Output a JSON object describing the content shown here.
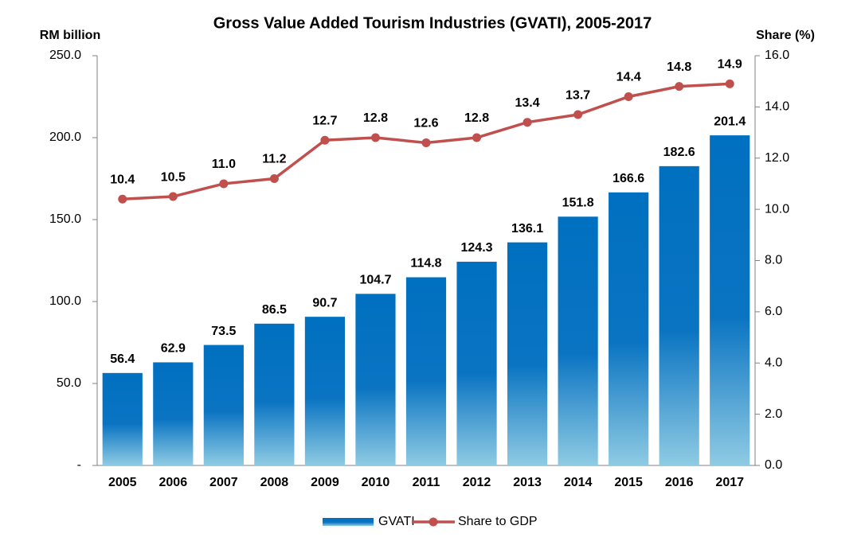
{
  "chart_data": {
    "type": "bar",
    "title": "Gross Value Added Tourism Industries (GVATI), 2005-2017",
    "y_axis_label": "RM billion",
    "y2_axis_label": "Share (%)",
    "categories": [
      "2005",
      "2006",
      "2007",
      "2008",
      "2009",
      "2010",
      "2011",
      "2012",
      "2013",
      "2014",
      "2015",
      "2016",
      "2017"
    ],
    "series": [
      {
        "name": "GVATI",
        "type": "bar",
        "color": "#0070c0",
        "values": [
          56.4,
          62.9,
          73.5,
          86.5,
          90.7,
          104.7,
          114.8,
          124.3,
          136.1,
          151.8,
          166.6,
          182.6,
          201.4
        ]
      },
      {
        "name": "Share to GDP",
        "type": "line",
        "axis": "y2",
        "color": "#c0504d",
        "values": [
          10.4,
          10.5,
          11.0,
          11.2,
          12.7,
          12.8,
          12.6,
          12.8,
          13.4,
          13.7,
          14.4,
          14.8,
          14.9
        ],
        "value_labels": [
          "10.4",
          "10.5",
          "11.0",
          "11.2",
          "12.7",
          "12.8",
          "12.6",
          "12.8",
          "13.4",
          "13.7",
          "14.4",
          "14.8",
          "14.9"
        ]
      }
    ],
    "ylim": [
      0,
      250
    ],
    "yticks": [
      {
        "value": 0,
        "label": "-"
      },
      {
        "value": 50,
        "label": "50.0"
      },
      {
        "value": 100,
        "label": "100.0"
      },
      {
        "value": 150,
        "label": "150.0"
      },
      {
        "value": 200,
        "label": "200.0"
      },
      {
        "value": 250,
        "label": "250.0"
      }
    ],
    "y2lim": [
      0,
      16
    ],
    "y2ticks": [
      {
        "value": 0,
        "label": "0.0"
      },
      {
        "value": 2,
        "label": "2.0"
      },
      {
        "value": 4,
        "label": "4.0"
      },
      {
        "value": 6,
        "label": "6.0"
      },
      {
        "value": 8,
        "label": "8.0"
      },
      {
        "value": 10,
        "label": "10.0"
      },
      {
        "value": 12,
        "label": "12.0"
      },
      {
        "value": 14,
        "label": "14.0"
      },
      {
        "value": 16,
        "label": "16.0"
      }
    ],
    "grid": false,
    "legend": "bottom"
  }
}
